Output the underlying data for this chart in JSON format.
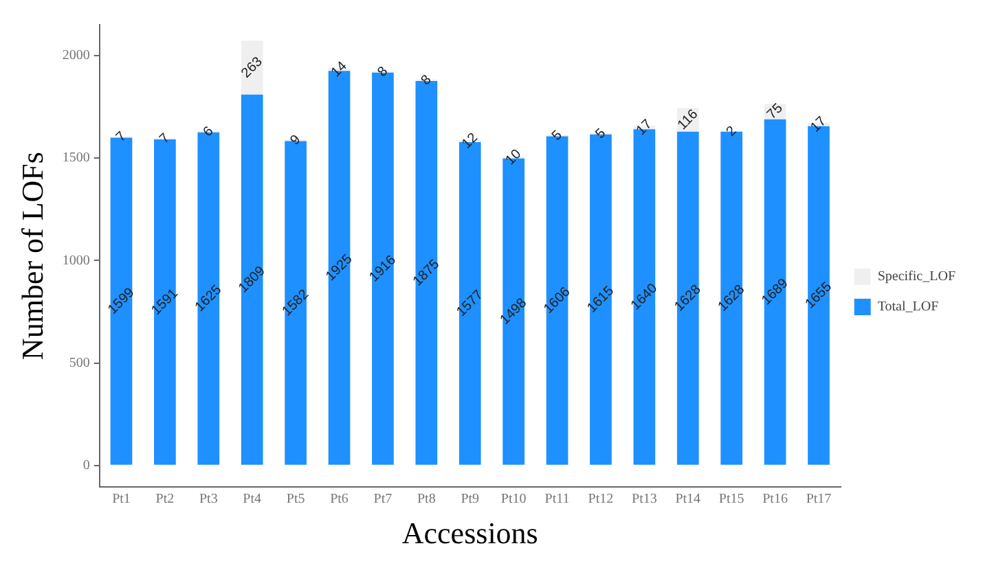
{
  "chart_data": {
    "type": "bar",
    "stacked": true,
    "xlabel": "Accessions",
    "ylabel": "Number of LOFs",
    "categories": [
      "Pt1",
      "Pt2",
      "Pt3",
      "Pt4",
      "Pt5",
      "Pt6",
      "Pt7",
      "Pt8",
      "Pt9",
      "Pt10",
      "Pt11",
      "Pt12",
      "Pt13",
      "Pt14",
      "Pt15",
      "Pt16",
      "Pt17"
    ],
    "series": [
      {
        "name": "Total_LOF",
        "color": "#1e90ff",
        "values": [
          1599,
          1591,
          1625,
          1809,
          1582,
          1925,
          1916,
          1875,
          1577,
          1498,
          1606,
          1615,
          1640,
          1628,
          1628,
          1689,
          1655
        ]
      },
      {
        "name": "Specific_LOF",
        "color": "#efefef",
        "values": [
          7,
          7,
          6,
          263,
          9,
          14,
          8,
          8,
          12,
          10,
          5,
          5,
          17,
          116,
          2,
          75,
          17
        ]
      }
    ],
    "ylim": [
      -105,
      2150
    ],
    "yticks": [
      0,
      500,
      1000,
      1500,
      2000
    ],
    "grid": false,
    "legend": "right",
    "data_labels": true
  }
}
